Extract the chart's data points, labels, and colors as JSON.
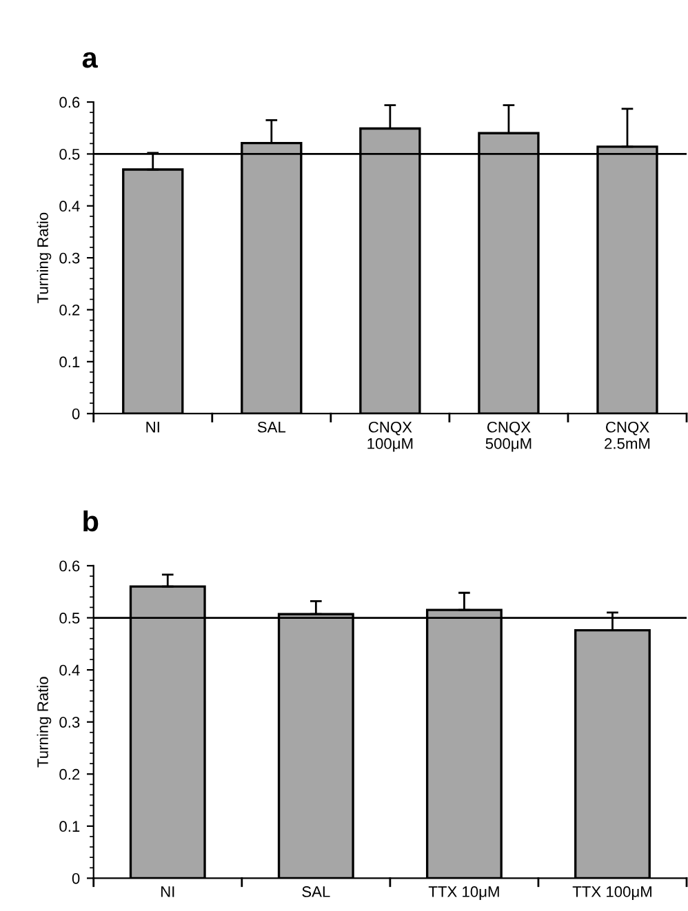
{
  "chart_data": [
    {
      "type": "bar",
      "title": "a",
      "ylabel": "Turning Ratio",
      "categories": [
        "NI",
        "SAL",
        "CNQX\n100μM",
        "CNQX\n500μM",
        "CNQX\n2.5mM"
      ],
      "values": [
        0.47,
        0.521,
        0.549,
        0.54,
        0.514
      ],
      "errors": [
        [
          0.47,
          0.502
        ],
        [
          0.521,
          0.565
        ],
        [
          0.549,
          0.594
        ],
        [
          0.54,
          0.594
        ],
        [
          0.514,
          0.587
        ]
      ],
      "color": "#a6a6a6",
      "ylim": [
        0,
        0.6
      ],
      "yticks": [
        0,
        0.1,
        0.2,
        0.3,
        0.4,
        0.5,
        0.6
      ],
      "grid": false,
      "ref_lines": [
        {
          "axis": "y",
          "value": 0.5,
          "color": "#000000"
        }
      ]
    },
    {
      "type": "bar",
      "title": "b",
      "ylabel": "Turning Ratio",
      "categories": [
        "NI",
        "SAL",
        "TTX 10μM",
        "TTX 100μM"
      ],
      "values": [
        0.56,
        0.507,
        0.515,
        0.476
      ],
      "errors": [
        [
          0.56,
          0.583
        ],
        [
          0.507,
          0.532
        ],
        [
          0.515,
          0.548
        ],
        [
          0.476,
          0.51
        ]
      ],
      "color": "#a6a6a6",
      "ylim": [
        0,
        0.6
      ],
      "yticks": [
        0,
        0.1,
        0.2,
        0.3,
        0.4,
        0.5,
        0.6
      ],
      "grid": false,
      "ref_lines": [
        {
          "axis": "y",
          "value": 0.5,
          "color": "#000000"
        }
      ]
    }
  ]
}
